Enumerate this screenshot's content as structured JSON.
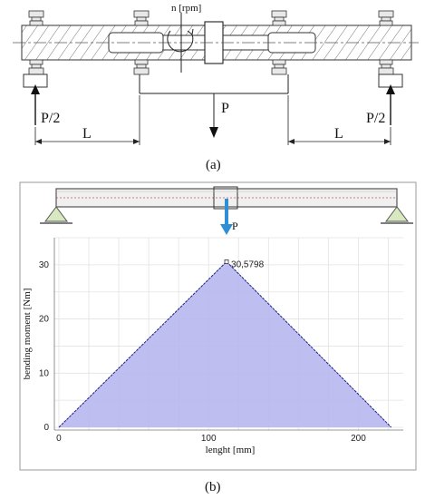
{
  "figure_a": {
    "rpm_label": "n [rpm]",
    "load_center": "P",
    "load_left": "P/2",
    "load_right": "P/2",
    "span_left": "L",
    "span_right": "L",
    "caption": "(a)"
  },
  "figure_b": {
    "load_label": "P",
    "caption": "(b)",
    "peak_label": "30,5798"
  },
  "chart_data": {
    "type": "area",
    "xlabel": "lenght [mm]",
    "ylabel": "bending moment [Nm]",
    "x": [
      0,
      112,
      222
    ],
    "y": [
      0,
      30.5798,
      0
    ],
    "xticks": [
      0,
      100,
      200
    ],
    "yticks": [
      0,
      10,
      20,
      30
    ],
    "xlim": [
      -3,
      230
    ],
    "ylim": [
      -0.5,
      35
    ],
    "grid": true,
    "fill_color": "#b7b7ee",
    "line_color": "#1f1f8f",
    "annotations": [
      {
        "x": 112,
        "y": 30.5798,
        "text": "30,5798"
      }
    ]
  },
  "colors": {
    "arrow_blue": "#2f8fd6",
    "support_green": "#d8e8c0",
    "panel_border": "#9a9a9a"
  }
}
